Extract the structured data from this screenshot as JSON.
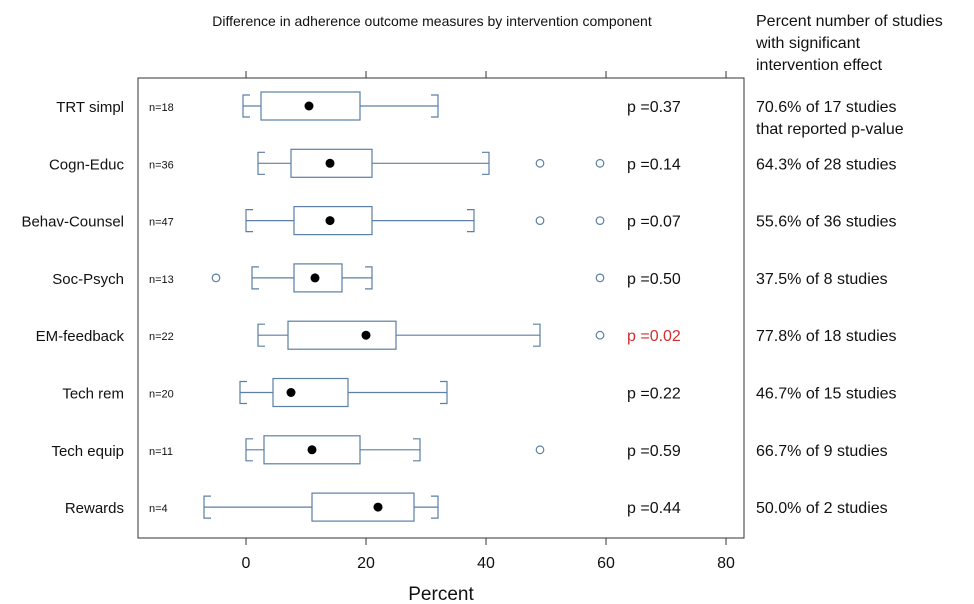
{
  "chart_data": {
    "type": "boxplot",
    "title": "Difference in adherence outcome measures by intervention component",
    "xlabel": "Percent",
    "xlim": [
      -18,
      83
    ],
    "xticks": [
      0,
      20,
      40,
      60,
      80
    ],
    "grid": false,
    "right_header": [
      "Percent number of studies",
      "with significant",
      "intervention effect"
    ],
    "colors": {
      "box": "#5b7fa6",
      "median": "#000000",
      "text": "#111111",
      "significant": "#d03030",
      "frame": "#333333"
    },
    "categories": [
      {
        "label": "TRT simpl",
        "n": "n=18",
        "whisker_low": -0.5,
        "q1": 2.5,
        "q3": 19,
        "whisker_high": 32,
        "median": 10.5,
        "outliers": [],
        "p": "p =0.37",
        "significant": false,
        "summary": "70.6% of 17 studies",
        "summary2": "that reported p-value"
      },
      {
        "label": "Cogn-Educ",
        "n": "n=36",
        "whisker_low": 2,
        "q1": 7.5,
        "q3": 21,
        "whisker_high": 40.5,
        "median": 14,
        "outliers": [
          49,
          59
        ],
        "p": "p =0.14",
        "significant": false,
        "summary": "64.3% of 28 studies"
      },
      {
        "label": "Behav-Counsel",
        "n": "n=47",
        "whisker_low": 0,
        "q1": 8,
        "q3": 21,
        "whisker_high": 38,
        "median": 14,
        "outliers": [
          49,
          59
        ],
        "p": "p =0.07",
        "significant": false,
        "summary": "55.6% of 36 studies"
      },
      {
        "label": "Soc-Psych",
        "n": "n=13",
        "whisker_low": 1,
        "q1": 8,
        "q3": 16,
        "whisker_high": 21,
        "median": 11.5,
        "outliers": [
          -5,
          59
        ],
        "p": "p =0.50",
        "significant": false,
        "summary": "37.5% of 8 studies"
      },
      {
        "label": "EM-feedback",
        "n": "n=22",
        "whisker_low": 2,
        "q1": 7,
        "q3": 25,
        "whisker_high": 49,
        "median": 20,
        "outliers": [
          59
        ],
        "p": "p =0.02",
        "significant": true,
        "summary": "77.8% of 18 studies"
      },
      {
        "label": "Tech rem",
        "n": "n=20",
        "whisker_low": -1,
        "q1": 4.5,
        "q3": 17,
        "whisker_high": 33.5,
        "median": 7.5,
        "outliers": [],
        "p": "p =0.22",
        "significant": false,
        "summary": "46.7% of 15 studies"
      },
      {
        "label": "Tech equip",
        "n": "n=11",
        "whisker_low": 0,
        "q1": 3,
        "q3": 19,
        "whisker_high": 29,
        "median": 11,
        "outliers": [
          49
        ],
        "p": "p =0.59",
        "significant": false,
        "summary": "66.7% of 9 studies"
      },
      {
        "label": "Rewards",
        "n": "n=4",
        "whisker_low": -7,
        "q1": 11,
        "q3": 28,
        "whisker_high": 32,
        "median": 22,
        "outliers": [],
        "p": "p =0.44",
        "significant": false,
        "summary": "50.0% of 2 studies"
      }
    ]
  }
}
